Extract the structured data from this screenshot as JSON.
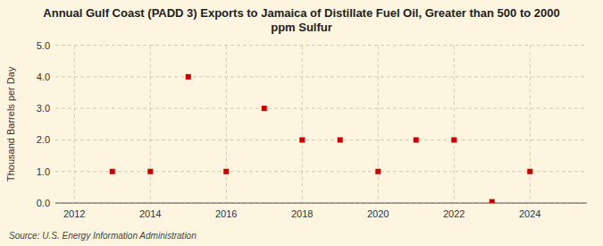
{
  "chart_data": {
    "type": "scatter",
    "title": "Annual Gulf Coast (PADD 3) Exports to Jamaica of Distillate Fuel Oil, Greater than 500 to 2000\nppm Sulfur",
    "y_label": "Thousand Barrels per Day",
    "source": "Source: U.S. Energy Information Administration",
    "x": [
      2013,
      2014,
      2015,
      2016,
      2017,
      2018,
      2019,
      2020,
      2021,
      2022,
      2023,
      2024
    ],
    "values": [
      1.0,
      1.0,
      4.0,
      1.0,
      3.0,
      2.0,
      2.0,
      1.0,
      2.0,
      2.0,
      0.04,
      1.0
    ],
    "color": "#cc0000",
    "marker": "square",
    "xlim": [
      2011.5,
      2025.5
    ],
    "ylim": [
      0,
      5.0
    ],
    "xticks": [
      2012,
      2014,
      2016,
      2018,
      2020,
      2022,
      2024
    ],
    "yticks": [
      {
        "value": 0.0,
        "label": "0.0"
      },
      {
        "value": 1.0,
        "label": "1.0"
      },
      {
        "value": 2.0,
        "label": "2.0"
      },
      {
        "value": 3.0,
        "label": "3.0"
      },
      {
        "value": 4.0,
        "label": "4.0"
      },
      {
        "value": 5.0,
        "label": "5.0"
      }
    ],
    "grid": true
  }
}
